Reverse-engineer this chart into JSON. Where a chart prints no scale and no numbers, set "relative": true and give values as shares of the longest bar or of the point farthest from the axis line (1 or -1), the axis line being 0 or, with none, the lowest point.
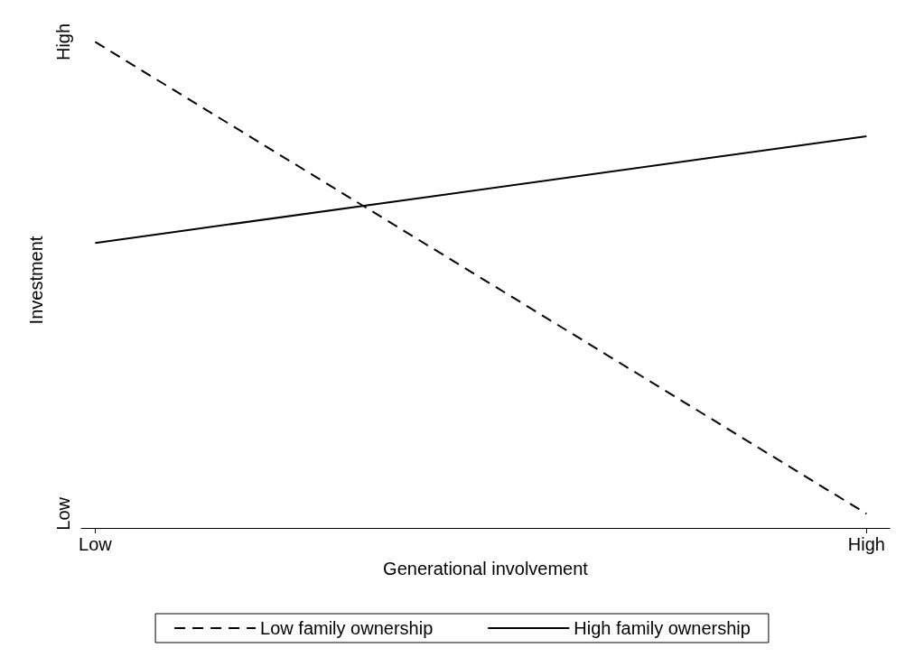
{
  "chart_data": {
    "type": "line",
    "xlabel": "Generational involvement",
    "ylabel": "Investment",
    "categories": [
      "Low",
      "High"
    ],
    "series": [
      {
        "name": "Low family ownership",
        "color": "#000000",
        "line_style": "dashed",
        "values": [
          1,
          0
        ]
      },
      {
        "name": "High family ownership",
        "color": "#000000",
        "line_style": "solid",
        "values": [
          0.574,
          0.8
        ]
      }
    ],
    "relative": true,
    "annotations": [
      "High",
      "Low"
    ],
    "grid": false,
    "legend": "bottom",
    "marker": "none"
  }
}
